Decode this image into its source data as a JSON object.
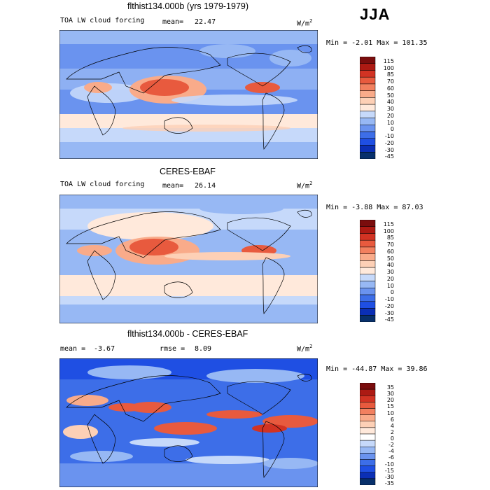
{
  "season": "JJA",
  "colors": {
    "levels_115": [
      "#08306b",
      "#0b2fb5",
      "#1f4fe3",
      "#3d6ee8",
      "#6a93ef",
      "#97b8f4",
      "#c6d9fa",
      "#ffe9db",
      "#fdd0b6",
      "#f9ab8a",
      "#f2805f",
      "#e85a3e",
      "#d23323",
      "#ad1a13",
      "#7a0d0d"
    ],
    "levels_35": [
      "#08306b",
      "#0b2fb5",
      "#1f4fe3",
      "#3d6ee8",
      "#6a93ef",
      "#97b8f4",
      "#c6d9fa",
      "#ffffff",
      "#ffe9db",
      "#fdd0b6",
      "#f9ab8a",
      "#f2805f",
      "#e85a3e",
      "#d23323",
      "#ad1a13",
      "#7a0d0d"
    ]
  },
  "panels": [
    {
      "id": "model",
      "title": "flthist134.000b (yrs 1979-1979)",
      "left_label": "TOA LW cloud forcing",
      "stat_label": "mean=",
      "stat_value": "22.47",
      "units": "W/m",
      "units_sup": "2",
      "min_label": "Min =",
      "min_value": "-2.01",
      "max_label": "Max =",
      "max_value": "101.35",
      "colorbar_labels": [
        "115",
        "100",
        "85",
        "70",
        "60",
        "50",
        "40",
        "30",
        "20",
        "10",
        "0",
        "-10",
        "-20",
        "-30",
        "-45"
      ]
    },
    {
      "id": "obs",
      "title": "CERES-EBAF",
      "left_label": "TOA LW cloud forcing",
      "stat_label": "mean=",
      "stat_value": "26.14",
      "units": "W/m",
      "units_sup": "2",
      "min_label": "Min =",
      "min_value": "-3.88",
      "max_label": "Max =",
      "max_value": "87.03",
      "colorbar_labels": [
        "115",
        "100",
        "85",
        "70",
        "60",
        "50",
        "40",
        "30",
        "20",
        "10",
        "0",
        "-10",
        "-20",
        "-30",
        "-45"
      ]
    },
    {
      "id": "diff",
      "title": "flthist134.000b - CERES-EBAF",
      "left_label": "mean =",
      "left_value": "-3.67",
      "stat_label": "rmse =",
      "stat_value": "8.09",
      "units": "W/m",
      "units_sup": "2",
      "min_label": "Min =",
      "min_value": "-44.87",
      "max_label": "Max =",
      "max_value": "39.86",
      "colorbar_labels": [
        "35",
        "30",
        "20",
        "15",
        "10",
        "6",
        "4",
        "2",
        "0",
        "-2",
        "-4",
        "-6",
        "-10",
        "-15",
        "-30",
        "-35"
      ]
    }
  ]
}
